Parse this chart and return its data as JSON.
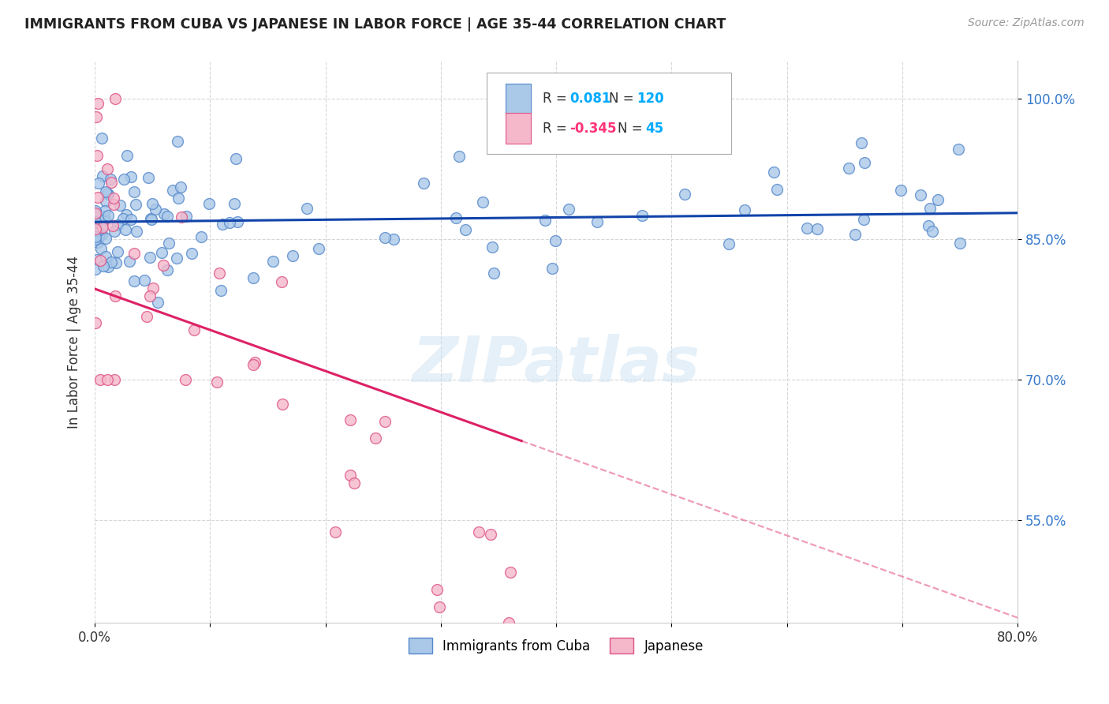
{
  "title": "IMMIGRANTS FROM CUBA VS JAPANESE IN LABOR FORCE | AGE 35-44 CORRELATION CHART",
  "source": "Source: ZipAtlas.com",
  "ylabel": "In Labor Force | Age 35-44",
  "xlim": [
    0.0,
    0.8
  ],
  "ylim": [
    0.44,
    1.04
  ],
  "xticks": [
    0.0,
    0.1,
    0.2,
    0.3,
    0.4,
    0.5,
    0.6,
    0.7,
    0.8
  ],
  "xtick_labels": [
    "0.0%",
    "",
    "",
    "",
    "",
    "",
    "",
    "",
    "80.0%"
  ],
  "ytick_positions": [
    0.55,
    0.7,
    0.85,
    1.0
  ],
  "ytick_labels": [
    "55.0%",
    "70.0%",
    "85.0%",
    "100.0%"
  ],
  "grid_color": "#cccccc",
  "background_color": "#ffffff",
  "cuba_color": "#aac8e8",
  "cuba_edge_color": "#5588cc",
  "japan_color": "#f5b8cb",
  "japan_edge_color": "#dd5588",
  "cuba_R": 0.081,
  "cuba_N": 120,
  "japan_R": -0.345,
  "japan_N": 45,
  "cuba_line_color": "#1144aa",
  "japan_line_color": "#dd2266",
  "watermark": "ZIPatlas",
  "legend_R_val1": "0.081",
  "legend_N_val1": "120",
  "legend_R_val2": "-0.345",
  "legend_N_val2": "45",
  "legend_color_R1": "#00aaff",
  "legend_color_N1": "#00aaff",
  "legend_color_R2": "#ff3377",
  "legend_color_N2": "#00aaff",
  "marker_size": 100
}
